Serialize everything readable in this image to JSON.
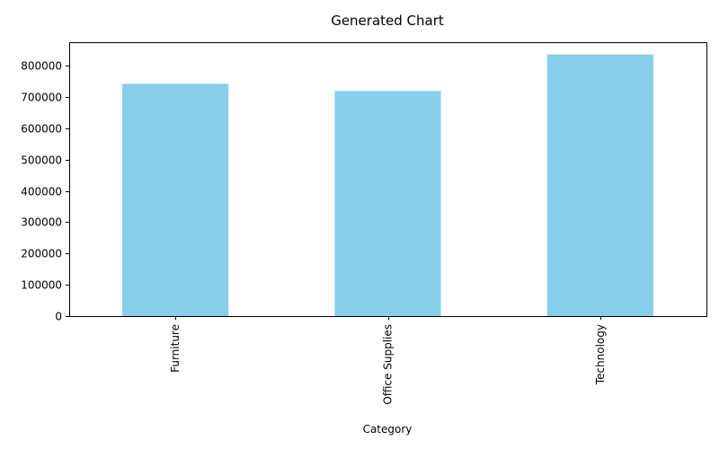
{
  "chart_data": {
    "type": "bar",
    "title": "Generated Chart",
    "xlabel": "Category",
    "ylabel": "",
    "categories": [
      "Furniture",
      "Office Supplies",
      "Technology"
    ],
    "series": [
      {
        "values": [
          742000,
          719000,
          836000
        ]
      }
    ],
    "ylim": [
      0,
      875000
    ],
    "yticks": [
      0,
      100000,
      200000,
      300000,
      400000,
      500000,
      600000,
      700000,
      800000
    ],
    "ytick_labels": [
      "0",
      "100000",
      "200000",
      "300000",
      "400000",
      "500000",
      "600000",
      "700000",
      "800000"
    ],
    "grid": false,
    "legend": "none",
    "bar_color": "#87CEEB"
  }
}
